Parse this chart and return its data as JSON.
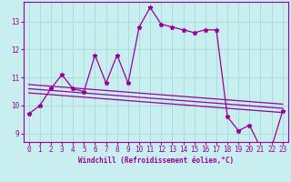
{
  "xlabel": "Windchill (Refroidissement éolien,°C)",
  "background_color": "#c8eef0",
  "line_color": "#990099",
  "grid_color": "#aadddd",
  "x_hours": [
    0,
    1,
    2,
    3,
    4,
    5,
    6,
    7,
    8,
    9,
    10,
    11,
    12,
    13,
    14,
    15,
    16,
    17,
    18,
    19,
    20,
    21,
    22,
    23
  ],
  "y_main": [
    9.7,
    10.0,
    10.6,
    11.1,
    10.6,
    10.5,
    11.8,
    10.8,
    11.8,
    10.8,
    12.8,
    13.5,
    12.9,
    12.8,
    12.7,
    12.6,
    12.7,
    12.7,
    9.6,
    9.1,
    9.3,
    8.5,
    8.5,
    9.8
  ],
  "trend_lines": [
    [
      10.75,
      10.05
    ],
    [
      10.45,
      9.75
    ],
    [
      10.6,
      9.9
    ]
  ],
  "xlim": [
    -0.5,
    23.5
  ],
  "ylim": [
    8.7,
    13.7
  ],
  "yticks": [
    9,
    10,
    11,
    12,
    13
  ],
  "xticks": [
    0,
    1,
    2,
    3,
    4,
    5,
    6,
    7,
    8,
    9,
    10,
    11,
    12,
    13,
    14,
    15,
    16,
    17,
    18,
    19,
    20,
    21,
    22,
    23
  ],
  "xlabel_fontsize": 5.5,
  "tick_fontsize": 5.5
}
